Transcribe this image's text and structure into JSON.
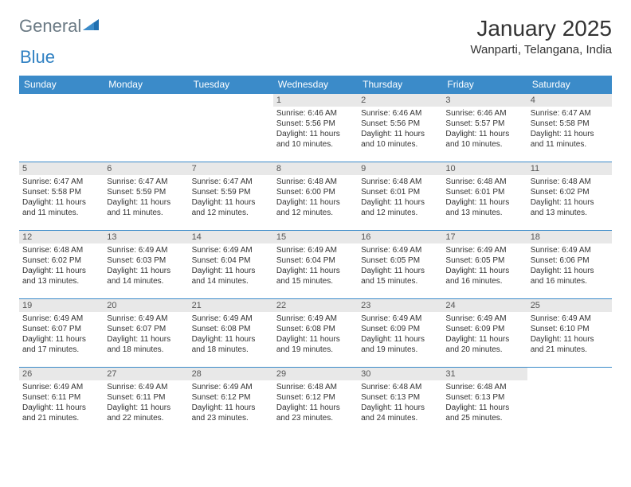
{
  "logo": {
    "part1": "General",
    "part2": "Blue"
  },
  "title": "January 2025",
  "location": "Wanparti, Telangana, India",
  "colors": {
    "header_bg": "#3b8bc9",
    "header_text": "#ffffff",
    "daynum_bg": "#e8e8e8",
    "row_border": "#3b8bc9",
    "logo_gray": "#6b7a84",
    "logo_blue": "#2f80c2"
  },
  "day_headers": [
    "Sunday",
    "Monday",
    "Tuesday",
    "Wednesday",
    "Thursday",
    "Friday",
    "Saturday"
  ],
  "weeks": [
    [
      {
        "n": "",
        "sr": "",
        "ss": "",
        "dl": ""
      },
      {
        "n": "",
        "sr": "",
        "ss": "",
        "dl": ""
      },
      {
        "n": "",
        "sr": "",
        "ss": "",
        "dl": ""
      },
      {
        "n": "1",
        "sr": "6:46 AM",
        "ss": "5:56 PM",
        "dl": "11 hours and 10 minutes."
      },
      {
        "n": "2",
        "sr": "6:46 AM",
        "ss": "5:56 PM",
        "dl": "11 hours and 10 minutes."
      },
      {
        "n": "3",
        "sr": "6:46 AM",
        "ss": "5:57 PM",
        "dl": "11 hours and 10 minutes."
      },
      {
        "n": "4",
        "sr": "6:47 AM",
        "ss": "5:58 PM",
        "dl": "11 hours and 11 minutes."
      }
    ],
    [
      {
        "n": "5",
        "sr": "6:47 AM",
        "ss": "5:58 PM",
        "dl": "11 hours and 11 minutes."
      },
      {
        "n": "6",
        "sr": "6:47 AM",
        "ss": "5:59 PM",
        "dl": "11 hours and 11 minutes."
      },
      {
        "n": "7",
        "sr": "6:47 AM",
        "ss": "5:59 PM",
        "dl": "11 hours and 12 minutes."
      },
      {
        "n": "8",
        "sr": "6:48 AM",
        "ss": "6:00 PM",
        "dl": "11 hours and 12 minutes."
      },
      {
        "n": "9",
        "sr": "6:48 AM",
        "ss": "6:01 PM",
        "dl": "11 hours and 12 minutes."
      },
      {
        "n": "10",
        "sr": "6:48 AM",
        "ss": "6:01 PM",
        "dl": "11 hours and 13 minutes."
      },
      {
        "n": "11",
        "sr": "6:48 AM",
        "ss": "6:02 PM",
        "dl": "11 hours and 13 minutes."
      }
    ],
    [
      {
        "n": "12",
        "sr": "6:48 AM",
        "ss": "6:02 PM",
        "dl": "11 hours and 13 minutes."
      },
      {
        "n": "13",
        "sr": "6:49 AM",
        "ss": "6:03 PM",
        "dl": "11 hours and 14 minutes."
      },
      {
        "n": "14",
        "sr": "6:49 AM",
        "ss": "6:04 PM",
        "dl": "11 hours and 14 minutes."
      },
      {
        "n": "15",
        "sr": "6:49 AM",
        "ss": "6:04 PM",
        "dl": "11 hours and 15 minutes."
      },
      {
        "n": "16",
        "sr": "6:49 AM",
        "ss": "6:05 PM",
        "dl": "11 hours and 15 minutes."
      },
      {
        "n": "17",
        "sr": "6:49 AM",
        "ss": "6:05 PM",
        "dl": "11 hours and 16 minutes."
      },
      {
        "n": "18",
        "sr": "6:49 AM",
        "ss": "6:06 PM",
        "dl": "11 hours and 16 minutes."
      }
    ],
    [
      {
        "n": "19",
        "sr": "6:49 AM",
        "ss": "6:07 PM",
        "dl": "11 hours and 17 minutes."
      },
      {
        "n": "20",
        "sr": "6:49 AM",
        "ss": "6:07 PM",
        "dl": "11 hours and 18 minutes."
      },
      {
        "n": "21",
        "sr": "6:49 AM",
        "ss": "6:08 PM",
        "dl": "11 hours and 18 minutes."
      },
      {
        "n": "22",
        "sr": "6:49 AM",
        "ss": "6:08 PM",
        "dl": "11 hours and 19 minutes."
      },
      {
        "n": "23",
        "sr": "6:49 AM",
        "ss": "6:09 PM",
        "dl": "11 hours and 19 minutes."
      },
      {
        "n": "24",
        "sr": "6:49 AM",
        "ss": "6:09 PM",
        "dl": "11 hours and 20 minutes."
      },
      {
        "n": "25",
        "sr": "6:49 AM",
        "ss": "6:10 PM",
        "dl": "11 hours and 21 minutes."
      }
    ],
    [
      {
        "n": "26",
        "sr": "6:49 AM",
        "ss": "6:11 PM",
        "dl": "11 hours and 21 minutes."
      },
      {
        "n": "27",
        "sr": "6:49 AM",
        "ss": "6:11 PM",
        "dl": "11 hours and 22 minutes."
      },
      {
        "n": "28",
        "sr": "6:49 AM",
        "ss": "6:12 PM",
        "dl": "11 hours and 23 minutes."
      },
      {
        "n": "29",
        "sr": "6:48 AM",
        "ss": "6:12 PM",
        "dl": "11 hours and 23 minutes."
      },
      {
        "n": "30",
        "sr": "6:48 AM",
        "ss": "6:13 PM",
        "dl": "11 hours and 24 minutes."
      },
      {
        "n": "31",
        "sr": "6:48 AM",
        "ss": "6:13 PM",
        "dl": "11 hours and 25 minutes."
      },
      {
        "n": "",
        "sr": "",
        "ss": "",
        "dl": ""
      }
    ]
  ],
  "labels": {
    "sunrise": "Sunrise:",
    "sunset": "Sunset:",
    "daylight": "Daylight:"
  }
}
